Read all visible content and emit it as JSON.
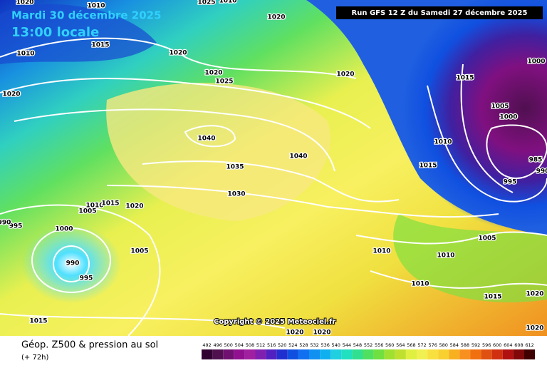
{
  "header": {
    "date_line": "Mardi 30 décembre 2025",
    "time_line": "13:00 locale",
    "run": "Run GFS 12 Z du Samedi 27 décembre 2025"
  },
  "isobar_labels": [
    "1020",
    "1010",
    "1025",
    "1010",
    "1020",
    "1010",
    "1015",
    "1020",
    "1020",
    "1020",
    "1025",
    "1020",
    "1015",
    "1000",
    "1005",
    "1000",
    "1040",
    "1040",
    "1035",
    "1030",
    "1010",
    "1015",
    "985",
    "990",
    "995",
    "1005",
    "1010",
    "1015",
    "1020",
    "995",
    "990",
    "1000",
    "1005",
    "990",
    "995",
    "1010",
    "1010",
    "1005",
    "1010",
    "1015",
    "1020",
    "1015",
    "1020",
    "1020",
    "1020"
  ],
  "copyright": "Copyright © 2025 Meteociel.fr",
  "footer": {
    "title": "Géop. Z500 & pression au sol",
    "lead": "(+ 72h)"
  },
  "legend": {
    "values": [
      492,
      496,
      500,
      504,
      508,
      512,
      516,
      520,
      524,
      528,
      532,
      536,
      540,
      544,
      548,
      552,
      556,
      560,
      564,
      568,
      572,
      576,
      580,
      584,
      588,
      592,
      596,
      600,
      604,
      608,
      612
    ]
  }
}
